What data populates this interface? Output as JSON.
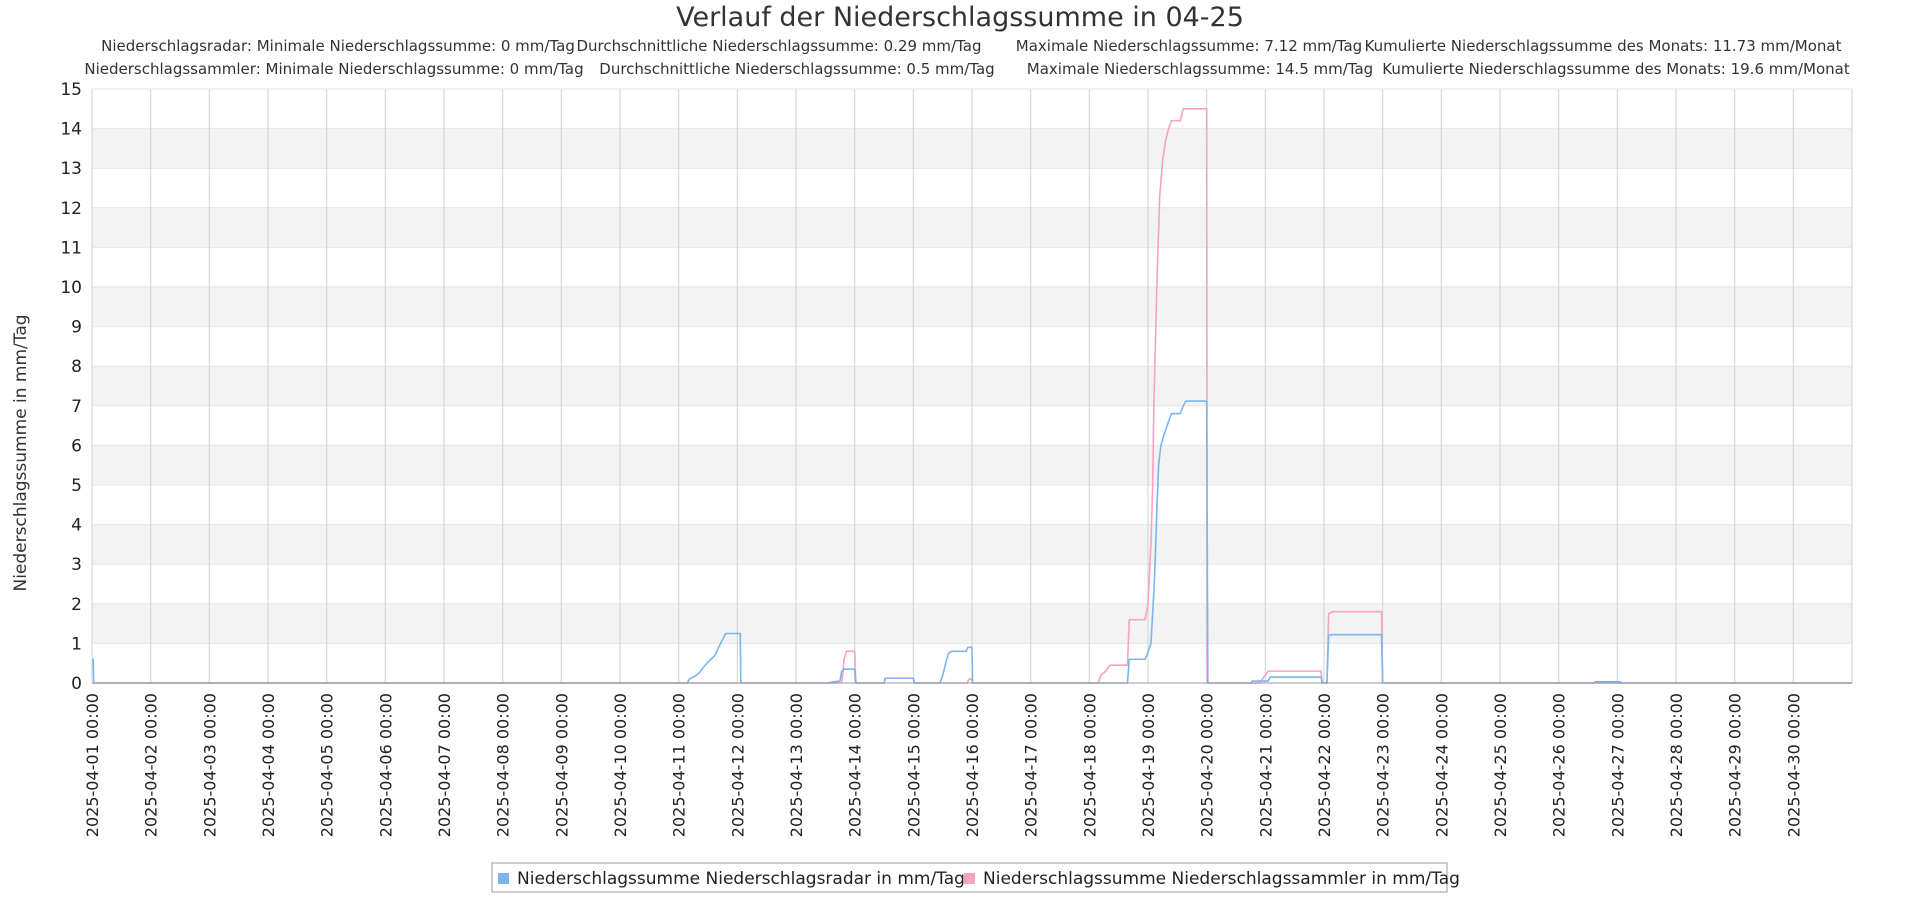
{
  "chart_data": {
    "type": "line",
    "title": "Verlauf der Niederschlagssumme in 04-25",
    "ylabel": "Niederschlagssumme in mm/Tag",
    "xlabel": "",
    "ylim": [
      0,
      15
    ],
    "yticks": [
      0,
      1,
      2,
      3,
      4,
      5,
      6,
      7,
      8,
      9,
      10,
      11,
      12,
      13,
      14,
      15
    ],
    "x_range_days": [
      0,
      30
    ],
    "x_tick_labels": [
      "2025-04-01 00:00",
      "2025-04-02 00:00",
      "2025-04-03 00:00",
      "2025-04-04 00:00",
      "2025-04-05 00:00",
      "2025-04-06 00:00",
      "2025-04-07 00:00",
      "2025-04-08 00:00",
      "2025-04-09 00:00",
      "2025-04-10 00:00",
      "2025-04-11 00:00",
      "2025-04-12 00:00",
      "2025-04-13 00:00",
      "2025-04-14 00:00",
      "2025-04-15 00:00",
      "2025-04-16 00:00",
      "2025-04-17 00:00",
      "2025-04-18 00:00",
      "2025-04-19 00:00",
      "2025-04-20 00:00",
      "2025-04-21 00:00",
      "2025-04-22 00:00",
      "2025-04-23 00:00",
      "2025-04-24 00:00",
      "2025-04-25 00:00",
      "2025-04-26 00:00",
      "2025-04-27 00:00",
      "2025-04-28 00:00",
      "2025-04-29 00:00",
      "2025-04-30 00:00"
    ],
    "grid": true,
    "legend_position": "bottom-center",
    "stats": {
      "radar": [
        "Niederschlagsradar: Minimale Niederschlagssumme: 0 mm/Tag",
        "Durchschnittliche Niederschlagssumme: 0.29 mm/Tag",
        "Maximale Niederschlagssumme: 7.12 mm/Tag",
        "Kumulierte Niederschlagssumme des Monats: 11.73 mm/Monat"
      ],
      "sammler": [
        "Niederschlagssammler: Minimale Niederschlagssumme: 0 mm/Tag",
        "Durchschnittliche Niederschlagssumme: 0.5 mm/Tag",
        "Maximale Niederschlagssumme: 14.5 mm/Tag",
        "Kumulierte Niederschlagssumme des Monats: 19.6 mm/Monat"
      ]
    },
    "series": [
      {
        "name": "Niederschlagssumme Niederschlagsradar in mm/Tag",
        "color": "#7cb5ec",
        "points": [
          [
            0.0,
            0.6
          ],
          [
            0.02,
            0.6
          ],
          [
            0.03,
            0
          ],
          [
            10.15,
            0
          ],
          [
            10.18,
            0.1
          ],
          [
            10.25,
            0.15
          ],
          [
            10.35,
            0.25
          ],
          [
            10.45,
            0.45
          ],
          [
            10.55,
            0.6
          ],
          [
            10.62,
            0.7
          ],
          [
            10.68,
            0.9
          ],
          [
            10.75,
            1.1
          ],
          [
            10.8,
            1.25
          ],
          [
            11.05,
            1.25
          ],
          [
            11.06,
            0
          ],
          [
            12.55,
            0
          ],
          [
            12.6,
            0.02
          ],
          [
            12.75,
            0.05
          ],
          [
            12.78,
            0.3
          ],
          [
            12.82,
            0.35
          ],
          [
            13.0,
            0.35
          ],
          [
            13.02,
            0
          ],
          [
            13.5,
            0
          ],
          [
            13.52,
            0.12
          ],
          [
            14.0,
            0.12
          ],
          [
            14.02,
            0
          ],
          [
            14.45,
            0
          ],
          [
            14.48,
            0.1
          ],
          [
            14.52,
            0.3
          ],
          [
            14.56,
            0.55
          ],
          [
            14.6,
            0.75
          ],
          [
            14.65,
            0.8
          ],
          [
            14.9,
            0.8
          ],
          [
            14.93,
            0.9
          ],
          [
            15.0,
            0.9
          ],
          [
            15.01,
            0
          ],
          [
            17.65,
            0
          ],
          [
            17.68,
            0.6
          ],
          [
            17.95,
            0.6
          ],
          [
            17.98,
            0.7
          ],
          [
            18.05,
            1.0
          ],
          [
            18.1,
            2.3
          ],
          [
            18.12,
            3.0
          ],
          [
            18.15,
            4.3
          ],
          [
            18.18,
            5.5
          ],
          [
            18.22,
            6.0
          ],
          [
            18.28,
            6.3
          ],
          [
            18.35,
            6.6
          ],
          [
            18.4,
            6.8
          ],
          [
            18.55,
            6.8
          ],
          [
            18.6,
            7.0
          ],
          [
            18.65,
            7.12
          ],
          [
            19.0,
            7.12
          ],
          [
            19.02,
            0
          ],
          [
            19.75,
            0
          ],
          [
            19.78,
            0.05
          ],
          [
            20.05,
            0.05
          ],
          [
            20.08,
            0.15
          ],
          [
            20.95,
            0.15
          ],
          [
            20.97,
            0
          ],
          [
            21.05,
            0
          ],
          [
            21.08,
            1.2
          ],
          [
            21.12,
            1.22
          ],
          [
            21.98,
            1.22
          ],
          [
            22.0,
            0
          ],
          [
            25.6,
            0
          ],
          [
            25.62,
            0.03
          ],
          [
            26.05,
            0.03
          ],
          [
            26.07,
            0
          ],
          [
            30.0,
            0
          ]
        ]
      },
      {
        "name": "Niederschlagssumme Niederschlagssammler in mm/Tag",
        "color": "#f7a1c4",
        "points": [
          [
            0.0,
            0
          ],
          [
            12.78,
            0
          ],
          [
            12.82,
            0.6
          ],
          [
            12.86,
            0.8
          ],
          [
            13.0,
            0.8
          ],
          [
            13.02,
            0
          ],
          [
            13.5,
            0
          ],
          [
            13.52,
            0.12
          ],
          [
            14.0,
            0.12
          ],
          [
            14.02,
            0
          ],
          [
            14.92,
            0
          ],
          [
            14.95,
            0.1
          ],
          [
            15.0,
            0.1
          ],
          [
            15.01,
            0
          ],
          [
            17.15,
            0
          ],
          [
            17.2,
            0.2
          ],
          [
            17.28,
            0.3
          ],
          [
            17.35,
            0.45
          ],
          [
            17.65,
            0.45
          ],
          [
            17.68,
            1.6
          ],
          [
            17.95,
            1.6
          ],
          [
            18.0,
            2.0
          ],
          [
            18.05,
            3.5
          ],
          [
            18.08,
            5.0
          ],
          [
            18.1,
            7.0
          ],
          [
            18.15,
            10.0
          ],
          [
            18.2,
            12.3
          ],
          [
            18.25,
            13.2
          ],
          [
            18.3,
            13.7
          ],
          [
            18.35,
            14.0
          ],
          [
            18.4,
            14.2
          ],
          [
            18.55,
            14.2
          ],
          [
            18.6,
            14.5
          ],
          [
            19.0,
            14.5
          ],
          [
            19.01,
            0
          ],
          [
            19.9,
            0
          ],
          [
            19.95,
            0.1
          ],
          [
            20.05,
            0.3
          ],
          [
            20.95,
            0.3
          ],
          [
            20.97,
            0
          ],
          [
            21.05,
            0
          ],
          [
            21.08,
            1.75
          ],
          [
            21.15,
            1.8
          ],
          [
            21.98,
            1.8
          ],
          [
            22.0,
            0
          ],
          [
            30.0,
            0
          ]
        ]
      }
    ]
  }
}
